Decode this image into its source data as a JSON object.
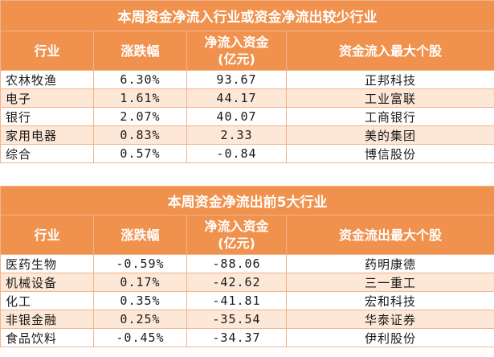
{
  "sections": [
    {
      "title": "本周资金净流入行业或资金净流出较少行业",
      "headers": [
        "行业",
        "涨跌幅",
        "净流入资金\n(亿元)",
        "资金流入最大个股"
      ],
      "rows": [
        [
          "农林牧渔",
          "6.30%",
          "93.67",
          "正邦科技"
        ],
        [
          "电子",
          "1.61%",
          "44.17",
          "工业富联"
        ],
        [
          "银行",
          "2.07%",
          "40.07",
          "工商银行"
        ],
        [
          "家用电器",
          "0.83%",
          "2.33",
          "美的集团"
        ],
        [
          "综合",
          "0.57%",
          "-0.84",
          "博信股份"
        ]
      ]
    },
    {
      "title": "本周资金净流出前5大行业",
      "headers": [
        "行业",
        "涨跌幅",
        "净流入资金\n(亿元)",
        "资金流出最大个股"
      ],
      "rows": [
        [
          "医药生物",
          "-0.59%",
          "-88.06",
          "药明康德"
        ],
        [
          "机械设备",
          "0.17%",
          "-42.62",
          "三一重工"
        ],
        [
          "化工",
          "0.35%",
          "-41.81",
          "宏和科技"
        ],
        [
          "非银金融",
          "0.25%",
          "-35.54",
          "华泰证券"
        ],
        [
          "食品饮料",
          "-0.45%",
          "-34.37",
          "伊利股份"
        ]
      ]
    }
  ]
}
